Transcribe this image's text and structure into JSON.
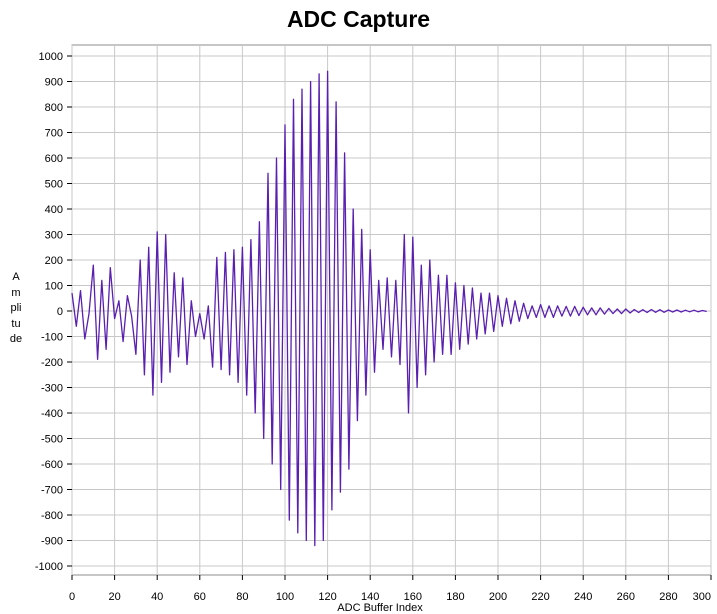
{
  "chart_data": {
    "type": "line",
    "title": "ADC Capture",
    "ylabel": "Amplitude",
    "xlabel": "ADC Buffer Index",
    "xlim": [
      0,
      300
    ],
    "ylim": [
      -1000,
      1000
    ],
    "x_ticks": [
      0,
      20,
      40,
      60,
      80,
      100,
      120,
      140,
      160,
      180,
      200,
      220,
      240,
      260,
      280,
      300
    ],
    "x_tick_labels": [
      "0",
      "20",
      "40",
      "60",
      "80",
      "100",
      "120",
      "140",
      "160",
      "180",
      "200",
      "220",
      "240",
      "260",
      "280",
      "300"
    ],
    "y_ticks": [
      1000,
      900,
      800,
      700,
      600,
      500,
      400,
      300,
      200,
      100,
      0,
      -100,
      -200,
      -300,
      -400,
      -500,
      -600,
      -700,
      -800,
      -900,
      -1000
    ],
    "y_tick_labels": [
      "1000",
      "900",
      "800",
      "700",
      "600",
      "500",
      "400",
      "300",
      "200",
      "100",
      "0",
      "-100",
      "-200",
      "-300",
      "-400",
      "-500",
      "-600",
      "-700",
      "-800",
      "-900",
      "-1000"
    ],
    "grid": true,
    "series": [
      {
        "color": "#5a1fb0",
        "x": [
          0,
          2,
          4,
          6,
          8,
          10,
          12,
          14,
          16,
          18,
          20,
          22,
          24,
          26,
          28,
          30,
          32,
          34,
          36,
          38,
          40,
          42,
          44,
          46,
          48,
          50,
          52,
          54,
          56,
          58,
          60,
          62,
          64,
          66,
          68,
          70,
          72,
          74,
          76,
          78,
          80,
          82,
          84,
          86,
          88,
          90,
          92,
          94,
          96,
          98,
          100,
          102,
          104,
          106,
          108,
          110,
          112,
          114,
          116,
          118,
          120,
          122,
          124,
          126,
          128,
          130,
          132,
          134,
          136,
          138,
          140,
          142,
          144,
          146,
          148,
          150,
          152,
          154,
          156,
          158,
          160,
          162,
          164,
          166,
          168,
          170,
          172,
          174,
          176,
          178,
          180,
          182,
          184,
          186,
          188,
          190,
          192,
          194,
          196,
          198,
          200,
          202,
          204,
          206,
          208,
          210,
          212,
          214,
          216,
          218,
          220,
          222,
          224,
          226,
          228,
          230,
          232,
          234,
          236,
          238,
          240,
          242,
          244,
          246,
          248,
          250,
          252,
          254,
          256,
          258,
          260,
          262,
          264,
          266,
          268,
          270,
          272,
          274,
          276,
          278,
          280,
          282,
          284,
          286,
          288,
          290,
          292,
          294,
          296,
          298
        ],
        "y": [
          70,
          -60,
          80,
          -110,
          -10,
          180,
          -190,
          120,
          -150,
          170,
          -30,
          40,
          -120,
          60,
          -20,
          -170,
          200,
          -250,
          250,
          -330,
          310,
          -280,
          300,
          -240,
          150,
          -180,
          130,
          -210,
          40,
          -100,
          -10,
          -110,
          20,
          -220,
          210,
          -230,
          230,
          -250,
          240,
          -280,
          250,
          -330,
          280,
          -400,
          350,
          -500,
          540,
          -600,
          600,
          -700,
          730,
          -820,
          830,
          -870,
          870,
          -900,
          900,
          -920,
          930,
          -900,
          940,
          -780,
          820,
          -710,
          620,
          -620,
          400,
          -430,
          320,
          -330,
          240,
          -240,
          120,
          -150,
          130,
          -180,
          120,
          -210,
          300,
          -400,
          290,
          -300,
          180,
          -250,
          200,
          -200,
          140,
          -170,
          140,
          -170,
          110,
          -150,
          100,
          -130,
          90,
          -110,
          70,
          -90,
          70,
          -80,
          60,
          -60,
          50,
          -50,
          40,
          -40,
          30,
          -30,
          20,
          -25,
          25,
          -25,
          20,
          -25,
          20,
          -20,
          18,
          -20,
          18,
          -18,
          15,
          -15,
          12,
          -15,
          12,
          -12,
          10,
          -10,
          8,
          -10,
          8,
          -8,
          6,
          -6,
          5,
          -6,
          6,
          -5,
          5,
          -5,
          4,
          -4,
          4,
          -4,
          3,
          -3,
          3,
          -3,
          2,
          -2
        ]
      }
    ]
  }
}
